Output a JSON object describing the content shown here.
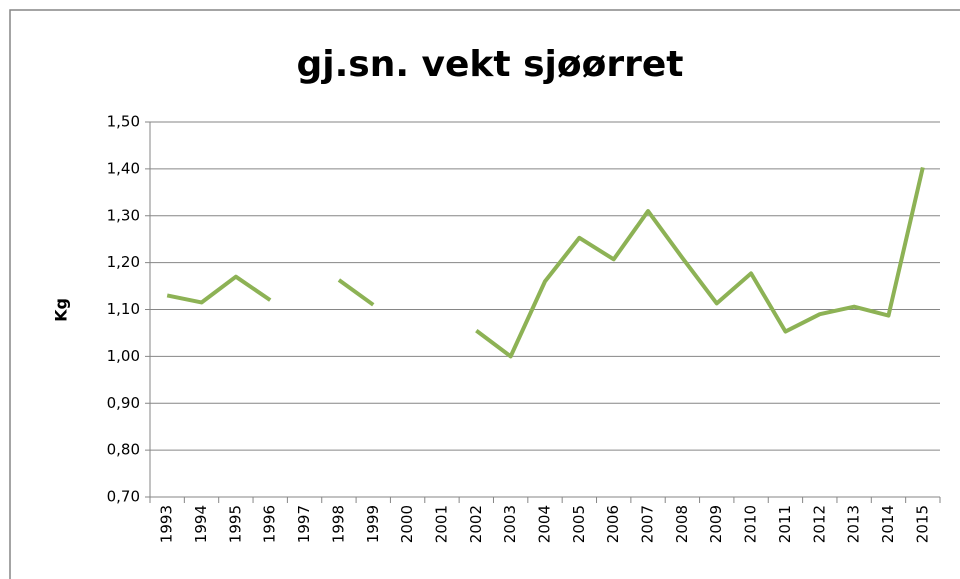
{
  "chart_data": {
    "type": "line",
    "title": "gj.sn. vekt sjøørret",
    "y_label": "Kg",
    "categories": [
      "1993",
      "1994",
      "1995",
      "1996",
      "1997",
      "1998",
      "1999",
      "2000",
      "2001",
      "2002",
      "2003",
      "2004",
      "2005",
      "2006",
      "2007",
      "2008",
      "2009",
      "2010",
      "2011",
      "2012",
      "2013",
      "2014",
      "2015"
    ],
    "series": [
      {
        "name": "gj.sn. vekt sjøørret",
        "color": "#8db255",
        "values": [
          1.13,
          1.115,
          1.17,
          1.12,
          null,
          1.163,
          1.11,
          null,
          null,
          1.055,
          1.0,
          1.16,
          1.253,
          1.207,
          1.31,
          1.21,
          1.113,
          1.177,
          1.053,
          1.09,
          1.106,
          1.087,
          1.403
        ]
      }
    ],
    "ylim": [
      0.7,
      1.5
    ],
    "yticks": [
      {
        "value": 0.7,
        "label": "0,70"
      },
      {
        "value": 0.8,
        "label": "0,80"
      },
      {
        "value": 0.9,
        "label": "0,90"
      },
      {
        "value": 1.0,
        "label": "1,00"
      },
      {
        "value": 1.1,
        "label": "1,10"
      },
      {
        "value": 1.2,
        "label": "1,20"
      },
      {
        "value": 1.3,
        "label": "1,30"
      },
      {
        "value": 1.4,
        "label": "1,40"
      },
      {
        "value": 1.5,
        "label": "1,50"
      }
    ],
    "grid": true
  }
}
